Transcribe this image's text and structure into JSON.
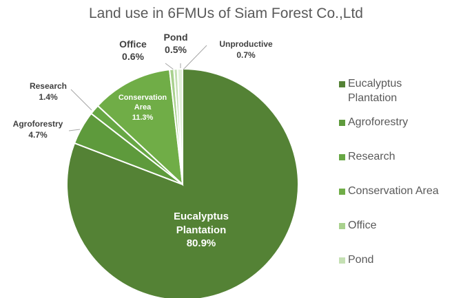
{
  "chart_data": {
    "type": "pie",
    "title": "Land use in 6FMUs of Siam Forest Co.,Ltd",
    "categories": [
      "Eucalyptus Plantation",
      "Agroforestry",
      "Research",
      "Conservation Area",
      "Office",
      "Pond",
      "Unproductive"
    ],
    "values": [
      80.9,
      4.7,
      1.4,
      11.3,
      0.6,
      0.5,
      0.7
    ],
    "value_labels": [
      "80.9%",
      "4.7%",
      "1.4%",
      "11.3%",
      "0.6%",
      "0.5%",
      "0.7%"
    ],
    "colors": [
      "#548235",
      "#5e9a3c",
      "#67a744",
      "#70ad47",
      "#a9d18e",
      "#c5e0b4",
      "#e2f0d9"
    ],
    "legend": "right"
  }
}
